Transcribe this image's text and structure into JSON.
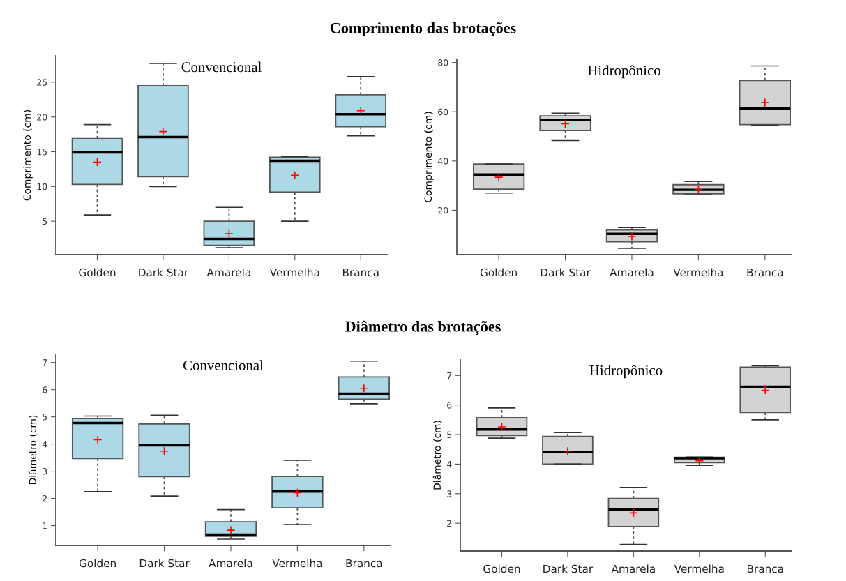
{
  "chart_data": [
    {
      "type": "box",
      "title": "Convencional",
      "ylabel": "Comprimento (cm)",
      "annotations": [
        "Comprimento das brotações"
      ],
      "categories": [
        "Golden",
        "Dark Star",
        "Amarela",
        "Vermelha",
        "Branca"
      ],
      "color": "#add8e6",
      "ylim": [
        0.2,
        28.8
      ],
      "yticks": [
        5,
        10,
        15,
        20,
        25
      ],
      "boxes": [
        {
          "low": 5.9,
          "q1": 10.3,
          "median": 14.9,
          "q3": 16.9,
          "high": 18.9,
          "mean": 13.5
        },
        {
          "low": 10.0,
          "q1": 11.4,
          "median": 17.1,
          "q3": 24.5,
          "high": 27.7,
          "mean": 17.9
        },
        {
          "low": 1.2,
          "q1": 1.55,
          "median": 2.45,
          "q3": 5.0,
          "high": 7.0,
          "mean": 3.2
        },
        {
          "low": 5.0,
          "q1": 9.2,
          "median": 13.7,
          "q3": 14.2,
          "high": 14.3,
          "mean": 11.6
        },
        {
          "low": 17.3,
          "q1": 18.6,
          "median": 20.4,
          "q3": 23.2,
          "high": 25.8,
          "mean": 20.9
        }
      ]
    },
    {
      "type": "box",
      "title": "Hidropônico",
      "ylabel": "Comprimento (cm)",
      "categories": [
        "Golden",
        "Dark Star",
        "Amarela",
        "Vermelha",
        "Branca"
      ],
      "color": "#d3d3d3",
      "ylim": [
        2,
        81.3
      ],
      "yticks": [
        20,
        40,
        60,
        80
      ],
      "boxes": [
        {
          "low": 27.0,
          "q1": 28.6,
          "median": 34.5,
          "q3": 38.8,
          "high": 38.8,
          "mean": 33.4
        },
        {
          "low": 48.3,
          "q1": 52.4,
          "median": 56.6,
          "q3": 58.3,
          "high": 59.4,
          "mean": 55.1
        },
        {
          "low": 4.6,
          "q1": 7.2,
          "median": 10.4,
          "q3": 12.0,
          "high": 13.0,
          "mean": 9.4
        },
        {
          "low": 26.3,
          "q1": 26.7,
          "median": 28.3,
          "q3": 30.4,
          "high": 31.7,
          "mean": 28.4
        },
        {
          "low": 54.5,
          "q1": 54.8,
          "median": 61.4,
          "q3": 72.7,
          "high": 78.6,
          "mean": 63.7
        }
      ]
    },
    {
      "type": "box",
      "title": "Convencional",
      "ylabel": "Diâmetro (cm)",
      "annotations": [
        "Diâmetro das brotações"
      ],
      "categories": [
        "Golden",
        "Dark Star",
        "Amarela",
        "Vermelha",
        "Branca"
      ],
      "color": "#add8e6",
      "ylim": [
        0.27,
        7.3
      ],
      "yticks": [
        1,
        2,
        3,
        4,
        5,
        6,
        7
      ],
      "boxes": [
        {
          "low": 2.25,
          "q1": 3.47,
          "median": 4.77,
          "q3": 4.94,
          "high": 5.03,
          "mean": 4.16
        },
        {
          "low": 2.09,
          "q1": 2.8,
          "median": 3.95,
          "q3": 4.74,
          "high": 5.06,
          "mean": 3.74
        },
        {
          "low": 0.5,
          "q1": 0.61,
          "median": 0.67,
          "q3": 1.14,
          "high": 1.59,
          "mean": 0.83
        },
        {
          "low": 1.04,
          "q1": 1.65,
          "median": 2.25,
          "q3": 2.81,
          "high": 3.4,
          "mean": 2.21
        },
        {
          "low": 5.48,
          "q1": 5.65,
          "median": 5.85,
          "q3": 6.47,
          "high": 7.05,
          "mean": 6.05
        }
      ]
    },
    {
      "type": "box",
      "title": "Hidropônico",
      "ylabel": "Diâmetro (cm)",
      "categories": [
        "Golden",
        "Dark Star",
        "Amarela",
        "Vermelha",
        "Branca"
      ],
      "color": "#d3d3d3",
      "ylim": [
        1.06,
        7.55
      ],
      "yticks": [
        2,
        3,
        4,
        5,
        6,
        7
      ],
      "boxes": [
        {
          "low": 4.88,
          "q1": 4.97,
          "median": 5.17,
          "q3": 5.57,
          "high": 5.9,
          "mean": 5.26
        },
        {
          "low": 4.0,
          "q1": 4.0,
          "median": 4.42,
          "q3": 4.94,
          "high": 5.07,
          "mean": 4.44
        },
        {
          "low": 1.28,
          "q1": 1.89,
          "median": 2.46,
          "q3": 2.84,
          "high": 3.21,
          "mean": 2.35
        },
        {
          "low": 3.96,
          "q1": 4.05,
          "median": 4.2,
          "q3": 4.23,
          "high": 4.24,
          "mean": 4.11
        },
        {
          "low": 5.5,
          "q1": 5.75,
          "median": 6.62,
          "q3": 7.28,
          "high": 7.33,
          "mean": 6.5
        }
      ]
    }
  ]
}
